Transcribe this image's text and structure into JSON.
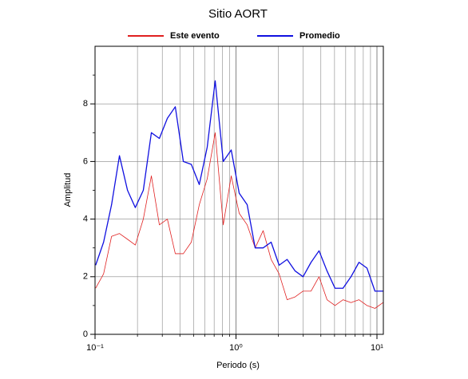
{
  "chart_data": {
    "type": "line",
    "title": "Sitio AORT",
    "x_label": "Periodo (s)",
    "y_label": "Amplitud",
    "log_x": true,
    "grid": true,
    "xlim": [
      0.1,
      11.1
    ],
    "ylim": [
      0,
      10
    ],
    "xticks": [
      {
        "value": 0.1,
        "label": "10⁻¹"
      },
      {
        "value": 1,
        "label": "10⁰"
      },
      {
        "value": 10,
        "label": "10¹"
      }
    ],
    "yticks": [
      0,
      2,
      4,
      6,
      8
    ],
    "x": [
      0.101,
      0.115,
      0.131,
      0.149,
      0.17,
      0.193,
      0.22,
      0.251,
      0.286,
      0.326,
      0.371,
      0.423,
      0.482,
      0.549,
      0.625,
      0.712,
      0.812,
      0.925,
      1.054,
      1.2,
      1.368,
      1.558,
      1.775,
      2.023,
      2.305,
      2.626,
      2.991,
      3.408,
      3.883,
      4.424,
      5.041,
      5.743,
      6.545,
      7.457,
      8.495,
      9.678,
      11.03
    ],
    "series": [
      {
        "name": "Este evento",
        "color": "#e02020",
        "values": [
          1.6,
          2.1,
          3.4,
          3.5,
          3.3,
          3.1,
          4.0,
          5.5,
          3.8,
          4.0,
          2.8,
          2.8,
          3.2,
          4.5,
          5.4,
          7.0,
          3.8,
          5.5,
          4.2,
          3.8,
          3.0,
          3.6,
          2.6,
          2.1,
          1.2,
          1.3,
          1.5,
          1.5,
          2.0,
          1.2,
          1.0,
          1.2,
          1.1,
          1.2,
          1.0,
          0.9,
          1.1
        ]
      },
      {
        "name": "Promedio",
        "color": "#1010e0",
        "values": [
          2.4,
          3.2,
          4.5,
          6.2,
          5.0,
          4.4,
          5.0,
          7.0,
          6.8,
          7.5,
          7.9,
          6.0,
          5.9,
          5.2,
          6.5,
          8.8,
          6.0,
          6.4,
          4.9,
          4.5,
          3.0,
          3.0,
          3.2,
          2.4,
          2.6,
          2.2,
          2.0,
          2.5,
          2.9,
          2.2,
          1.6,
          1.6,
          2.0,
          2.5,
          2.3,
          1.5,
          1.5
        ]
      }
    ]
  }
}
